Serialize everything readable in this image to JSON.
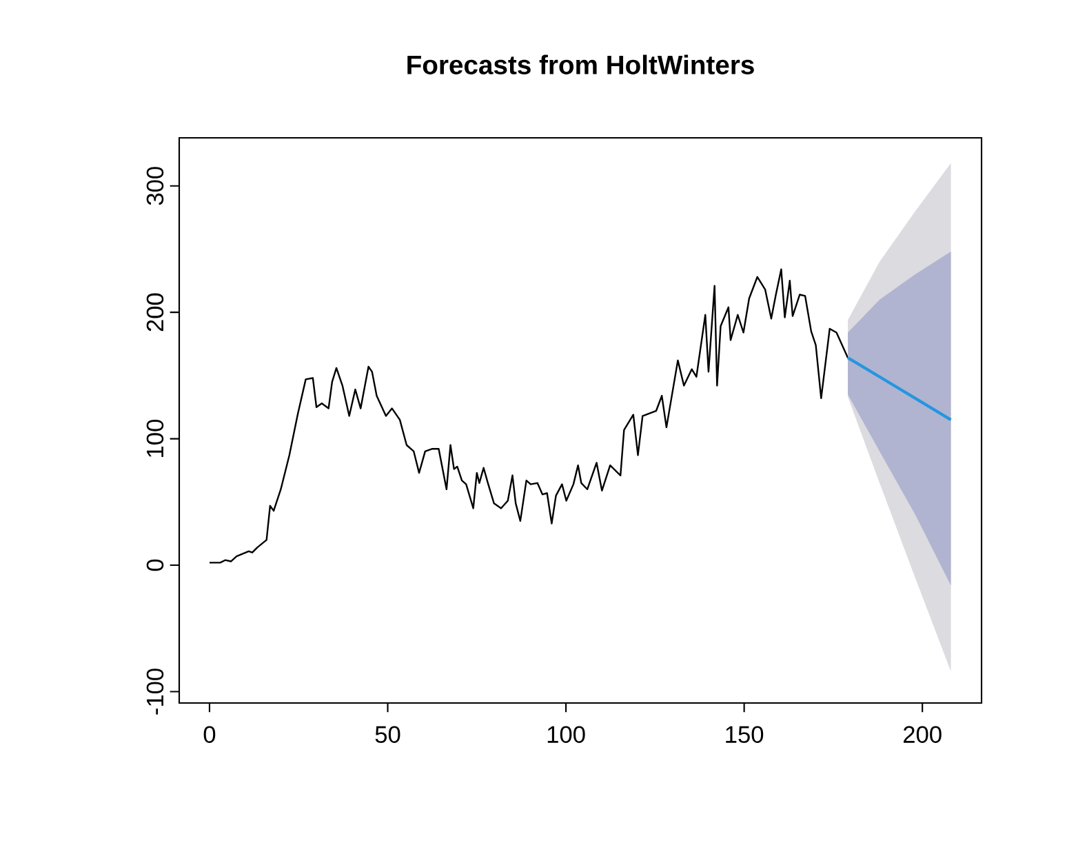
{
  "chart_data": {
    "type": "line",
    "title": "Forecasts from HoltWinters",
    "xlim": [
      -8.5,
      216.6
    ],
    "ylim": [
      -109,
      338
    ],
    "xticks": [
      0,
      50,
      100,
      150,
      200
    ],
    "yticks": [
      -100,
      0,
      100,
      200,
      300
    ],
    "marker": "none",
    "line_style": "solid",
    "series": [
      {
        "color": "#000000",
        "x": [
          0,
          3,
          4.4,
          6,
          7.6,
          11,
          12,
          13.4,
          16,
          17,
          18,
          20,
          22.4,
          24.8,
          27,
          29,
          30,
          31.5,
          33.4,
          34.4,
          35.6,
          37.3,
          39.2,
          40.9,
          42.4,
          44.6,
          45.6,
          46.9,
          49.5,
          51.2,
          53.4,
          55.3,
          57.3,
          58.8,
          60.5,
          62.4,
          64.3,
          66.5,
          67.6,
          68.6,
          69.5,
          70.8,
          72,
          74,
          75,
          75.7,
          76.9,
          78.1,
          79.8,
          81.8,
          83.7,
          85,
          85.9,
          87.2,
          88.9,
          90.1,
          92,
          93.4,
          94.7,
          96,
          97.2,
          98.9,
          100.1,
          102.1,
          103.4,
          104.3,
          106,
          108.6,
          110.1,
          112.4,
          115.3,
          116.3,
          118.9,
          120.2,
          121.5,
          125.3,
          126.9,
          128.2,
          131.4,
          133.1,
          135.3,
          136.6,
          139.1,
          140,
          141.7,
          142.4,
          143.4,
          145.6,
          146.2,
          148.2,
          149.8,
          151.4,
          153.7,
          155.9,
          157.6,
          158.9,
          160.4,
          161.4,
          162.8,
          163.6,
          165.6,
          167.1,
          168.8,
          170.1,
          171.6,
          174,
          175.9,
          179.1
        ],
        "values": [
          2,
          2,
          4,
          3,
          7,
          11,
          10,
          14,
          20,
          47,
          43,
          60,
          87,
          120,
          147,
          148,
          125,
          128,
          124,
          145,
          156,
          142,
          118,
          139,
          124,
          157,
          153,
          134,
          118,
          124,
          115,
          95,
          90,
          73,
          90,
          92,
          92,
          60,
          95,
          76,
          78,
          67,
          64,
          45,
          73,
          65,
          77,
          65,
          49,
          45,
          51,
          71,
          49,
          35,
          67,
          64,
          65,
          56,
          57,
          33,
          55,
          64,
          51,
          64,
          79,
          65,
          60,
          81,
          59,
          79,
          71,
          107,
          119,
          87,
          118,
          122,
          134,
          109,
          162,
          142,
          155,
          149,
          198,
          153,
          221,
          142,
          189,
          204,
          178,
          198,
          184,
          211,
          228,
          218,
          195,
          214,
          234,
          196,
          225,
          197,
          214,
          213,
          185,
          174,
          132,
          187,
          184,
          164
        ]
      },
      {
        "color": "#dbdbe0",
        "x": [
          179.1,
          188,
          198,
          208
        ],
        "values": [
          null,
          null,
          null,
          null
        ],
        "lower": [
          133,
          65,
          -10,
          -84
        ],
        "upper": [
          194,
          240,
          280,
          318
        ]
      },
      {
        "color": "#b0b4d0",
        "x": [
          179.1,
          188,
          198,
          208
        ],
        "values": [
          null,
          null,
          null,
          null
        ],
        "lower": [
          135,
          90,
          40,
          -16
        ],
        "upper": [
          184,
          210,
          230,
          248
        ]
      },
      {
        "color": "#2596e0",
        "x": [
          179.1,
          188,
          198,
          208
        ],
        "values": [
          164,
          149,
          132,
          115
        ]
      }
    ]
  }
}
